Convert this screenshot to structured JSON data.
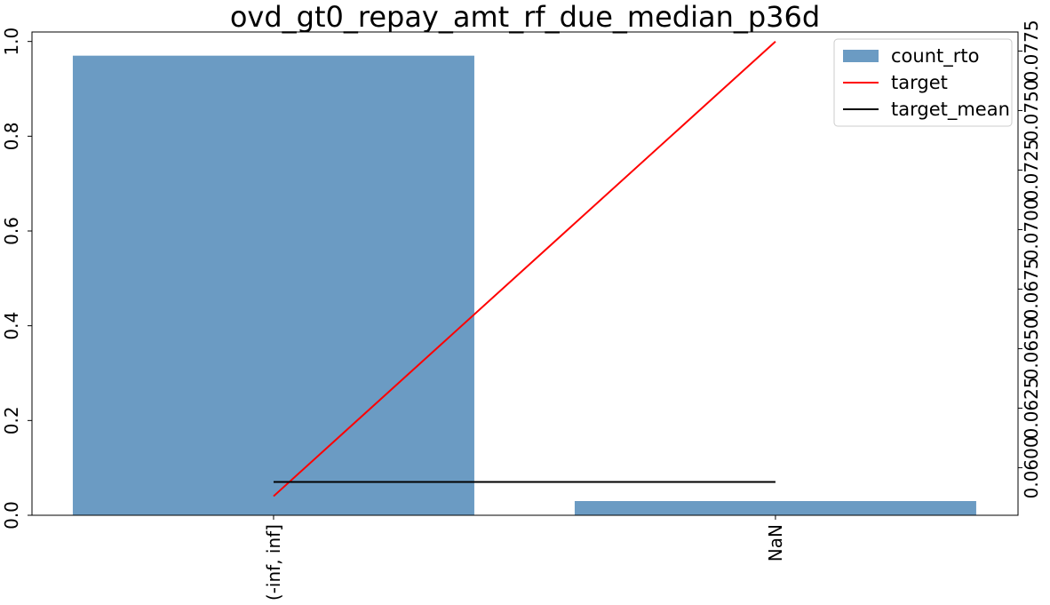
{
  "chart_data": {
    "type": "bar",
    "title": "ovd_gt0_repay_amt_rf_due_median_p36d",
    "categories": [
      "(-inf, inf]",
      "NaN"
    ],
    "series": [
      {
        "name": "count_rto",
        "kind": "bar",
        "axis": "left",
        "values": [
          0.97,
          0.03
        ]
      },
      {
        "name": "target",
        "kind": "line",
        "axis": "right",
        "values": [
          0.0588,
          0.0779
        ]
      },
      {
        "name": "target_mean",
        "kind": "line",
        "axis": "right",
        "values": [
          0.0594,
          0.0594
        ]
      }
    ],
    "y_left": {
      "ylim": [
        0,
        1.02
      ],
      "ticks": [
        0.0,
        0.2,
        0.4,
        0.6,
        0.8,
        1.0
      ],
      "tick_labels": [
        "0.0",
        "0.2",
        "0.4",
        "0.6",
        "0.8",
        "1.0"
      ]
    },
    "y_right": {
      "ylim": [
        0.058,
        0.0783
      ],
      "ticks": [
        0.06,
        0.0625,
        0.065,
        0.0675,
        0.07,
        0.0725,
        0.075,
        0.0775
      ],
      "tick_labels": [
        "0.0600",
        "0.0625",
        "0.0650",
        "0.0675",
        "0.0700",
        "0.0725",
        "0.0750",
        "0.0775"
      ]
    },
    "legend": {
      "position": "top-right",
      "entries": [
        "count_rto",
        "target",
        "target_mean"
      ]
    },
    "grid": false,
    "colors": {
      "bar": "#6b9bc3",
      "target": "#ff0000",
      "target_mean": "#000000"
    }
  }
}
